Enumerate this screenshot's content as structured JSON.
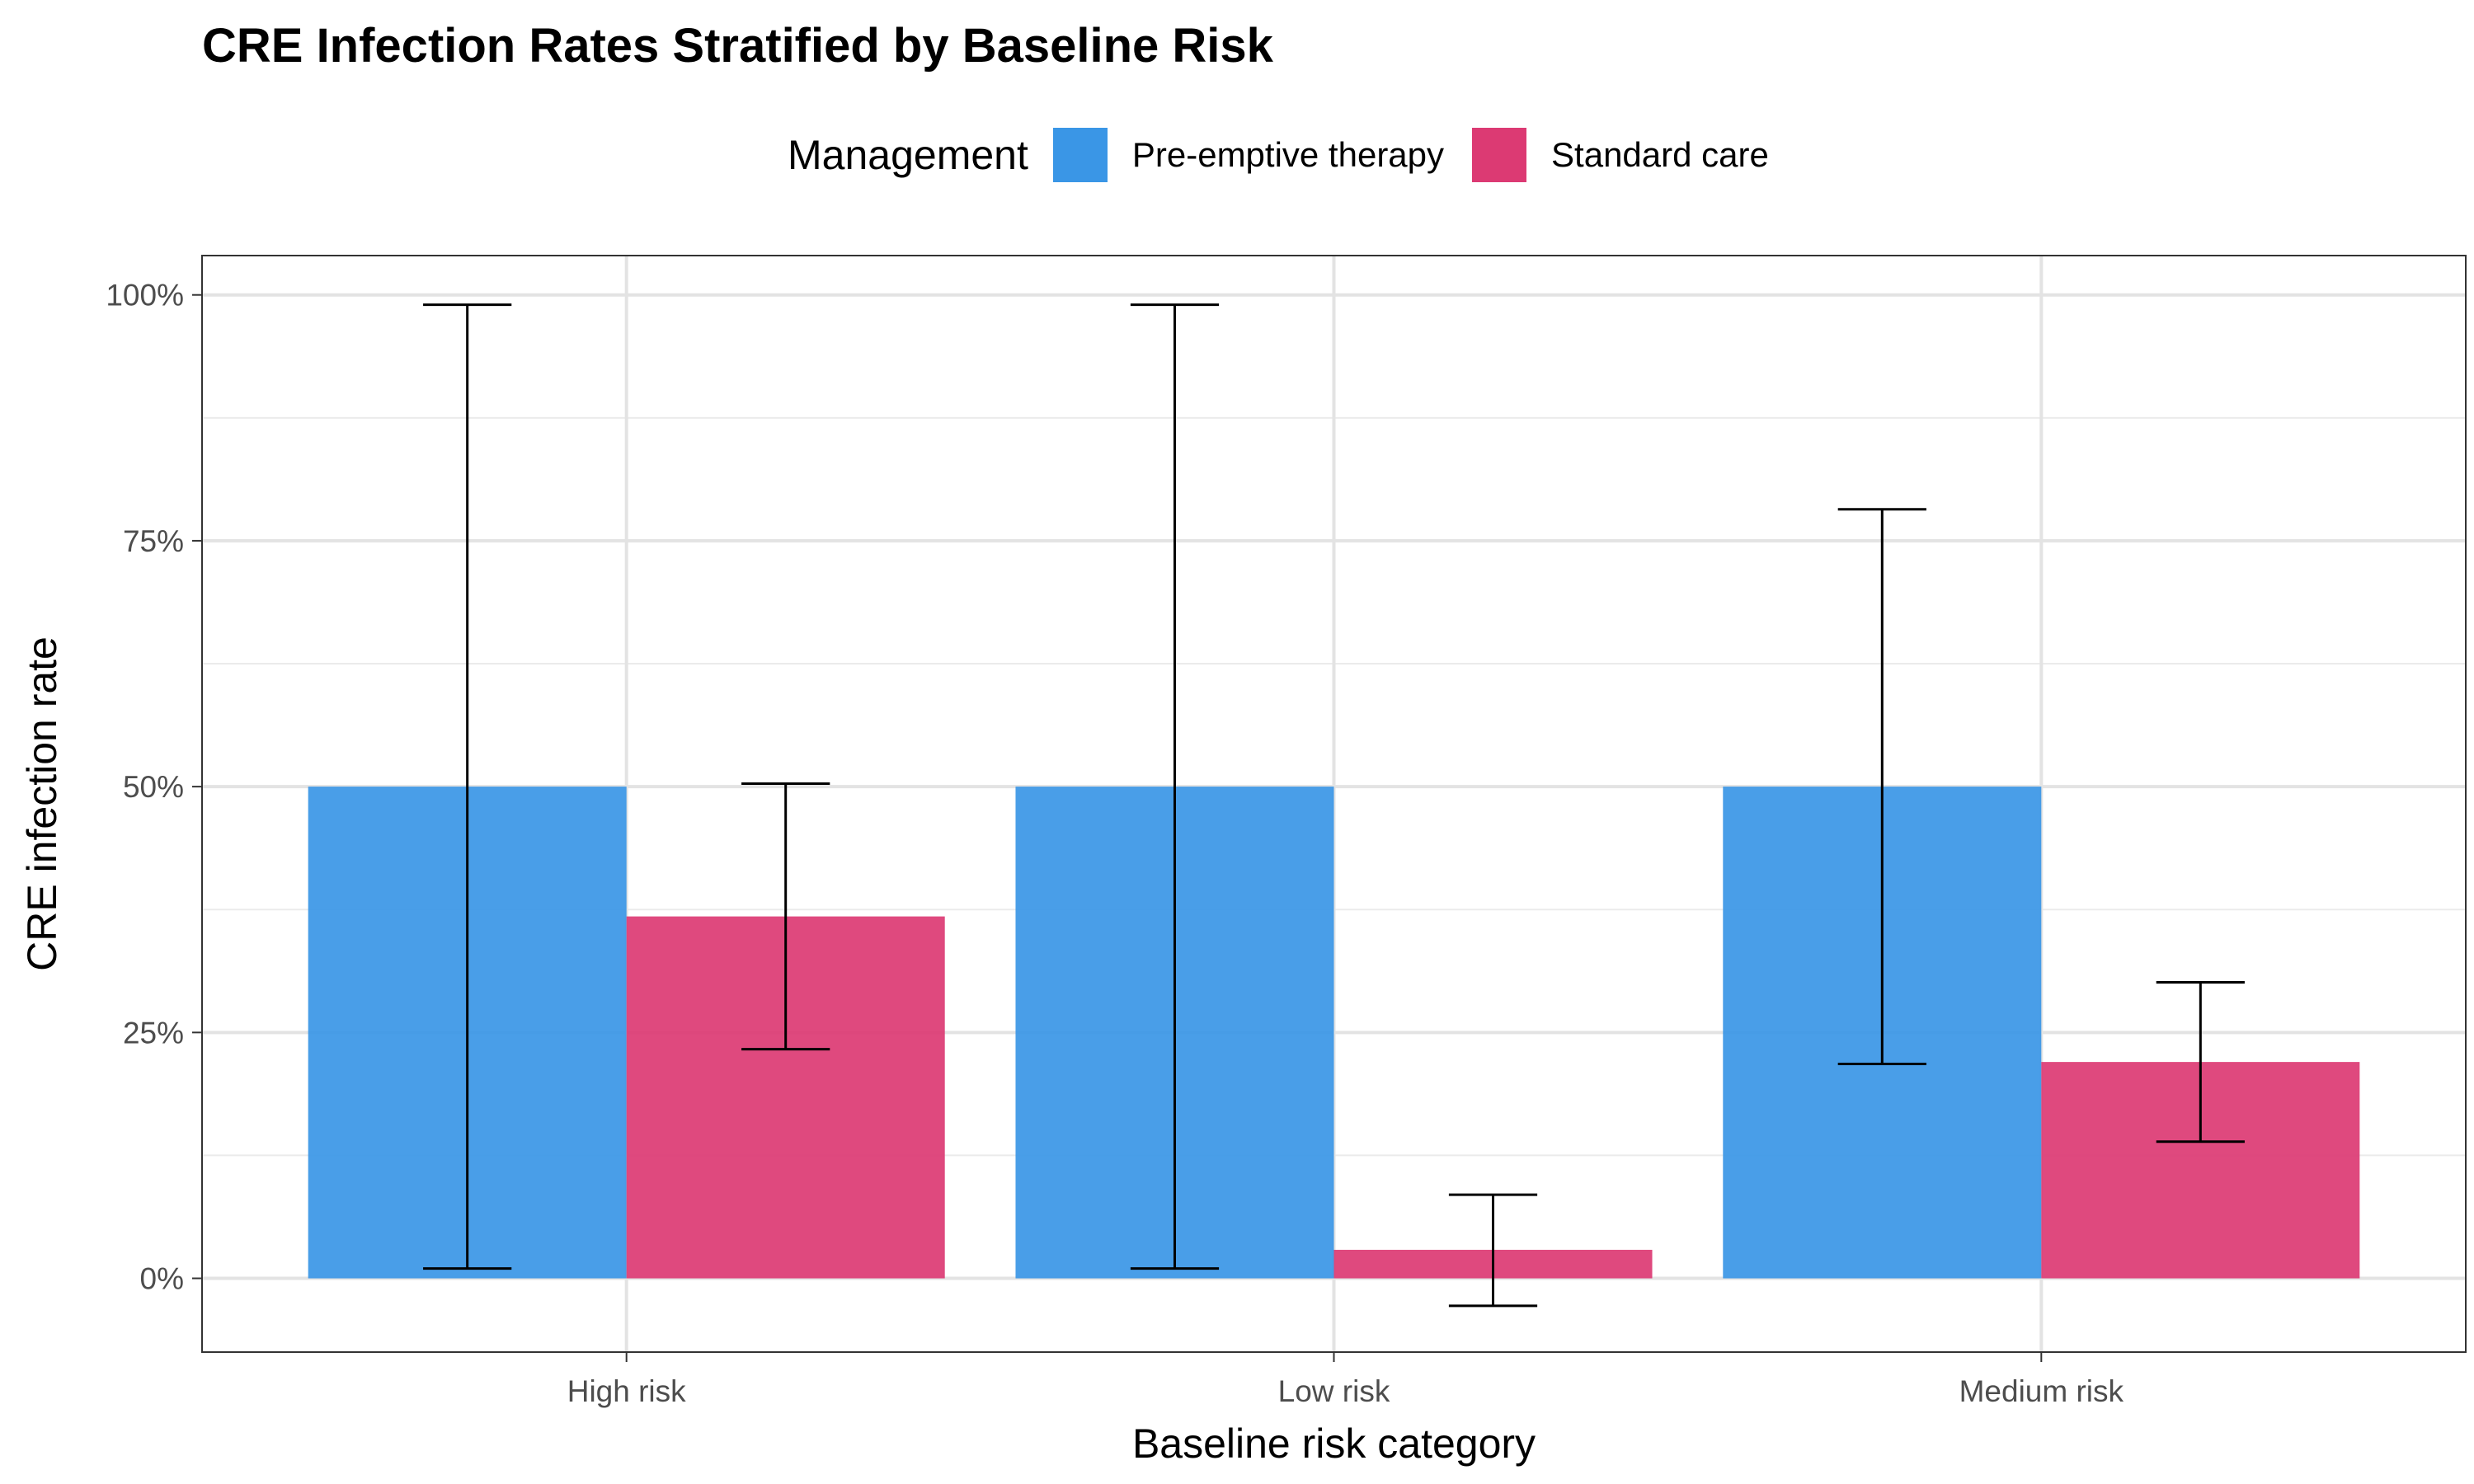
{
  "chart_data": {
    "type": "bar",
    "title": "CRE Infection Rates Stratified by Baseline Risk",
    "xlabel": "Baseline risk category",
    "ylabel": "CRE infection rate",
    "categories": [
      "High risk",
      "Low risk",
      "Medium risk"
    ],
    "ylim": [
      -0.075,
      1.04
    ],
    "yticks": [
      0,
      0.25,
      0.5,
      0.75,
      1.0
    ],
    "ytick_labels": [
      "0%",
      "25%",
      "50%",
      "75%",
      "100%"
    ],
    "legend_title": "Management",
    "legend_position": "top",
    "grid": true,
    "series": [
      {
        "name": "Pre-emptive therapy",
        "color": "#3a96e6",
        "values": [
          0.5,
          0.5,
          0.5
        ],
        "ci_low": [
          0.01,
          0.01,
          0.218
        ],
        "ci_high": [
          0.99,
          0.99,
          0.782
        ]
      },
      {
        "name": "Standard care",
        "color": "#dc3a73",
        "values": [
          0.368,
          0.029,
          0.22
        ],
        "ci_low": [
          0.233,
          -0.028,
          0.139
        ],
        "ci_high": [
          0.503,
          0.085,
          0.301
        ]
      }
    ]
  }
}
